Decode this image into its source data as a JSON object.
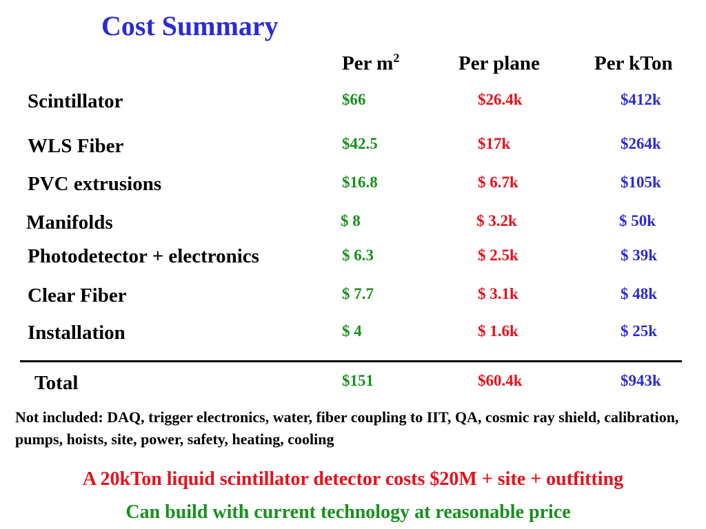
{
  "title": "Cost Summary",
  "columns": {
    "per_m2": "Per m",
    "per_m2_sup": "2",
    "per_plane": "Per plane",
    "per_kton": "Per kTon"
  },
  "rows": [
    {
      "label": "Scintillator",
      "per_m2": "$66",
      "per_plane": "$26.4k",
      "per_kton": "$412k"
    },
    {
      "label": "WLS Fiber",
      "per_m2": "$42.5",
      "per_plane": "$17k",
      "per_kton": "$264k"
    },
    {
      "label": "PVC extrusions",
      "per_m2": "$16.8",
      "per_plane": "$ 6.7k",
      "per_kton": "$105k"
    },
    {
      "label": "Manifolds",
      "per_m2": "$ 8",
      "per_plane": "$ 3.2k",
      "per_kton": "$ 50k"
    },
    {
      "label": "Photodetector + electronics",
      "per_m2": "$ 6.3",
      "per_plane": "$ 2.5k",
      "per_kton": "$ 39k"
    },
    {
      "label": "Clear Fiber",
      "per_m2": "$ 7.7",
      "per_plane": "$ 3.1k",
      "per_kton": "$ 48k"
    },
    {
      "label": "Installation",
      "per_m2": "$ 4",
      "per_plane": "$ 1.6k",
      "per_kton": "$ 25k"
    }
  ],
  "total": {
    "label": "Total",
    "per_m2": "$151",
    "per_plane": "$60.4k",
    "per_kton": "$943k"
  },
  "note": "Not included: DAQ, trigger electronics, water, fiber coupling to IIT, QA, cosmic ray shield, calibration, pumps, hoists, site, power, safety, heating, cooling",
  "summary_line_1": "A 20kTon liquid scintillator detector costs $20M + site + outfitting",
  "summary_line_2": "Can build with current technology at reasonable price",
  "colors": {
    "title": "#2b2bd6",
    "per_m2": "#16901c",
    "per_plane": "#e8101a",
    "per_kton": "#2b2bd6"
  }
}
